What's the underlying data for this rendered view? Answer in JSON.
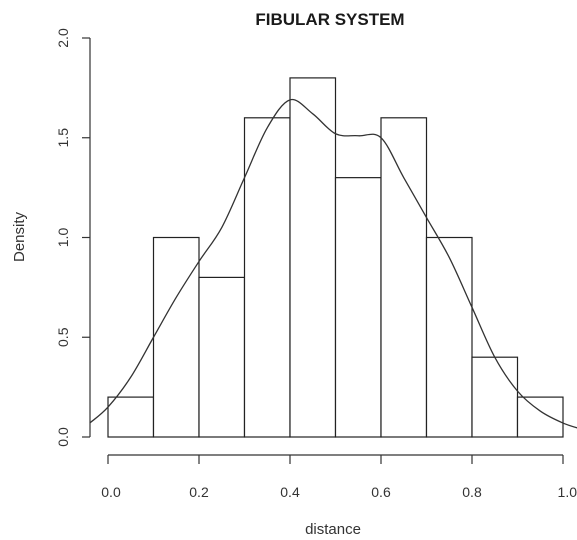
{
  "chart_data": {
    "type": "bar",
    "title": "FIBULAR SYSTEM",
    "xlabel": "distance",
    "ylabel": "Density",
    "xlim": [
      0.0,
      1.0
    ],
    "ylim": [
      0.0,
      2.0
    ],
    "x_ticks": [
      "0.0",
      "0.2",
      "0.4",
      "0.6",
      "0.8",
      "1.0"
    ],
    "y_ticks": [
      "0.0",
      "0.5",
      "1.0",
      "1.5",
      "2.0"
    ],
    "bins": [
      {
        "from": 0.0,
        "to": 0.1,
        "density": 0.2
      },
      {
        "from": 0.1,
        "to": 0.2,
        "density": 1.0
      },
      {
        "from": 0.2,
        "to": 0.3,
        "density": 0.8
      },
      {
        "from": 0.3,
        "to": 0.4,
        "density": 1.6
      },
      {
        "from": 0.4,
        "to": 0.5,
        "density": 1.8
      },
      {
        "from": 0.5,
        "to": 0.6,
        "density": 1.3
      },
      {
        "from": 0.6,
        "to": 0.7,
        "density": 1.6
      },
      {
        "from": 0.7,
        "to": 0.8,
        "density": 1.0
      },
      {
        "from": 0.8,
        "to": 0.9,
        "density": 0.4
      },
      {
        "from": 0.9,
        "to": 1.0,
        "density": 0.2
      }
    ],
    "density_curve": {
      "x": [
        -0.04,
        0.0,
        0.05,
        0.1,
        0.15,
        0.2,
        0.25,
        0.3,
        0.35,
        0.4,
        0.45,
        0.5,
        0.55,
        0.6,
        0.65,
        0.7,
        0.75,
        0.8,
        0.85,
        0.9,
        0.95,
        1.0,
        1.04
      ],
      "y": [
        0.07,
        0.15,
        0.3,
        0.5,
        0.7,
        0.88,
        1.05,
        1.3,
        1.55,
        1.69,
        1.62,
        1.52,
        1.51,
        1.5,
        1.3,
        1.1,
        0.9,
        0.65,
        0.4,
        0.23,
        0.13,
        0.07,
        0.04
      ]
    },
    "grid": false,
    "legend": "none"
  }
}
